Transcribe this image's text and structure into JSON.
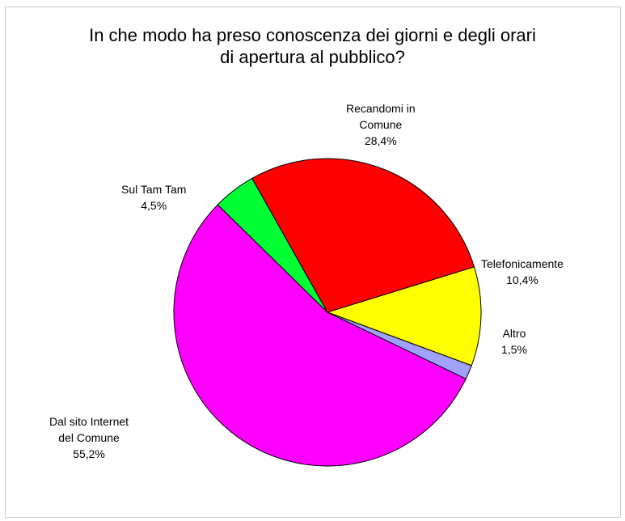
{
  "chart_data": {
    "type": "pie",
    "title_lines": [
      "In che modo ha preso conoscenza dei giorni e degli orari",
      "di apertura al pubblico?"
    ],
    "slices": [
      {
        "label_lines": [
          "Recandomi in",
          "Comune"
        ],
        "value_label": "28,4%",
        "value": 28.4,
        "color": "#ff0000"
      },
      {
        "label_lines": [
          "Telefonicamente"
        ],
        "value_label": "10,4%",
        "value": 10.4,
        "color": "#ffff00"
      },
      {
        "label_lines": [
          "Altro"
        ],
        "value_label": "1,5%",
        "value": 1.5,
        "color": "#a0a0ff"
      },
      {
        "label_lines": [
          "Dal sito Internet",
          "del Comune"
        ],
        "value_label": "55,2%",
        "value": 55.2,
        "color": "#ff00ff"
      },
      {
        "label_lines": [
          "Sul Tam Tam"
        ],
        "value_label": "4,5%",
        "value": 4.5,
        "color": "#00ff33"
      }
    ],
    "legend": "none"
  }
}
